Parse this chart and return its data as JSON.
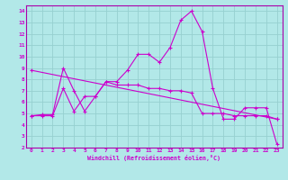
{
  "xlabel": "Windchill (Refroidissement éolien,°C)",
  "background_color": "#b2e8e8",
  "grid_color": "#96d0d0",
  "line_color": "#cc00cc",
  "spine_color": "#aa00aa",
  "xlim": [
    -0.5,
    23.5
  ],
  "ylim": [
    2,
    14.5
  ],
  "xticks": [
    0,
    1,
    2,
    3,
    4,
    5,
    6,
    7,
    8,
    9,
    10,
    11,
    12,
    13,
    14,
    15,
    16,
    17,
    18,
    19,
    20,
    21,
    22,
    23
  ],
  "yticks": [
    2,
    3,
    4,
    5,
    6,
    7,
    8,
    9,
    10,
    11,
    12,
    13,
    14
  ],
  "curve1_x": [
    0,
    1,
    2,
    3,
    4,
    5,
    6,
    7,
    8,
    9,
    10,
    11,
    12,
    13,
    14,
    15,
    16,
    17,
    18,
    19,
    20,
    21,
    22,
    23
  ],
  "curve1_y": [
    4.8,
    4.9,
    4.9,
    9.0,
    7.0,
    5.2,
    6.5,
    7.8,
    7.8,
    8.8,
    10.2,
    10.2,
    9.5,
    10.8,
    13.2,
    14.0,
    12.2,
    7.2,
    4.5,
    4.5,
    5.5,
    5.5,
    5.5,
    2.3
  ],
  "curve2_x": [
    0,
    1,
    2,
    3,
    4,
    5,
    6,
    7,
    8,
    9,
    10,
    11,
    12,
    13,
    14,
    15,
    16,
    17,
    18,
    19,
    20,
    21,
    22,
    23
  ],
  "curve2_y": [
    4.8,
    4.8,
    4.8,
    7.2,
    5.2,
    6.5,
    6.5,
    7.8,
    7.5,
    7.5,
    7.5,
    7.2,
    7.2,
    7.0,
    7.0,
    6.8,
    5.0,
    5.0,
    5.0,
    4.8,
    4.8,
    4.8,
    4.8,
    4.5
  ],
  "curve3_x": [
    0,
    23
  ],
  "curve3_y": [
    8.8,
    4.5
  ]
}
